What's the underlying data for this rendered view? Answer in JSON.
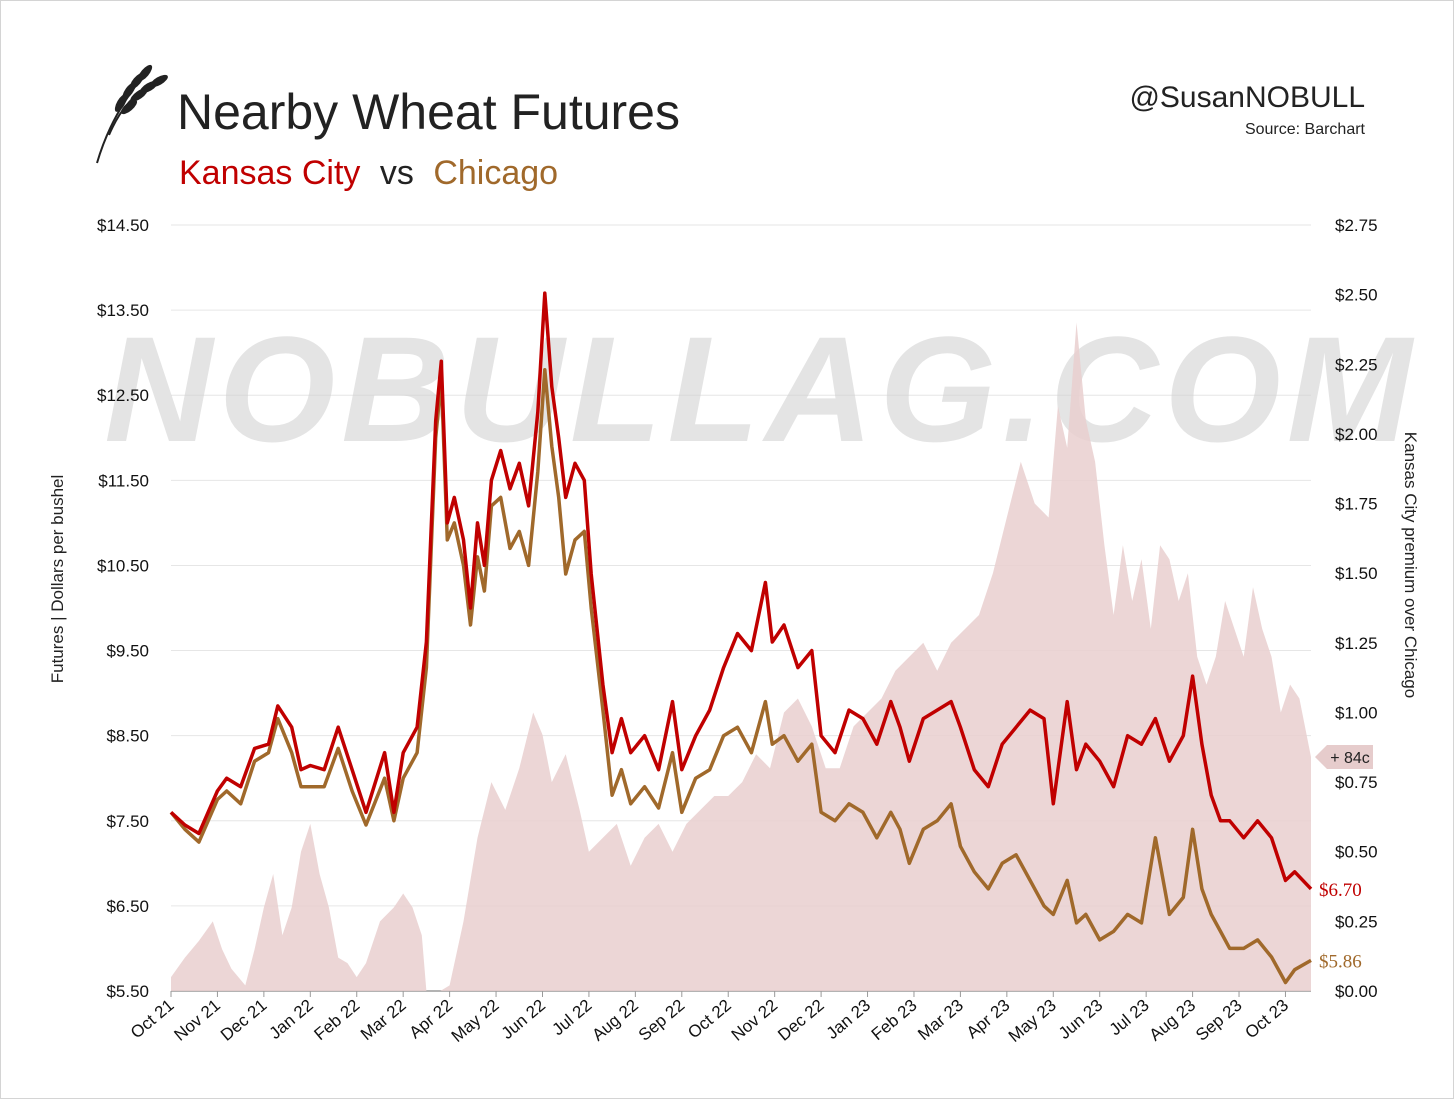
{
  "header": {
    "title": "Nearby Wheat Futures",
    "subtitle_kc": "Kansas City",
    "subtitle_vs": "vs",
    "subtitle_chi": "Chicago",
    "handle": "@SusanNOBULL",
    "source": "Source: Barchart",
    "watermark": "NOBULLAG.COM"
  },
  "colors": {
    "kansas_city": "#c00000",
    "chicago": "#a0692b",
    "premium_area": "#e9cfcf",
    "grid": "#e6e6e6"
  },
  "chart_data": {
    "type": "line",
    "title": "Nearby Wheat Futures",
    "subtitle": "Kansas City vs Chicago",
    "ylabel": "Futures | Dollars per bushel",
    "y2label": "Kansas City premium over Chicago",
    "ylim": [
      5.5,
      14.5
    ],
    "y2lim": [
      0,
      2.75
    ],
    "yticks": [
      "$14.50",
      "$13.50",
      "$12.50",
      "$11.50",
      "$10.50",
      "$9.50",
      "$8.50",
      "$7.50",
      "$6.50",
      "$5.50"
    ],
    "y2ticks": [
      "$2.75",
      "$2.50",
      "$2.25",
      "$2.00",
      "$1.75",
      "$1.50",
      "$1.25",
      "$1.00",
      "$0.75",
      "$0.50",
      "$0.25",
      "$0.00"
    ],
    "x_categories": [
      "Oct 21",
      "Nov 21",
      "Dec 21",
      "Jan 22",
      "Feb 22",
      "Mar 22",
      "Apr 22",
      "May 22",
      "Jun 22",
      "Jul 22",
      "Aug 22",
      "Sep 22",
      "Oct 22",
      "Nov 22",
      "Dec 22",
      "Jan 23",
      "Feb 23",
      "Mar 23",
      "Apr 23",
      "May 23",
      "Jun 23",
      "Jul 23",
      "Aug 23",
      "Sep 23",
      "Oct 23"
    ],
    "x_range": [
      0,
      24.55
    ],
    "grid": true,
    "series": [
      {
        "name": "Kansas City",
        "axis": "left",
        "color": "#c00000",
        "end_label": "$6.70",
        "points": [
          [
            0,
            7.6
          ],
          [
            0.3,
            7.45
          ],
          [
            0.6,
            7.35
          ],
          [
            1.0,
            7.85
          ],
          [
            1.2,
            8.0
          ],
          [
            1.5,
            7.9
          ],
          [
            1.8,
            8.35
          ],
          [
            2.1,
            8.4
          ],
          [
            2.3,
            8.85
          ],
          [
            2.6,
            8.6
          ],
          [
            2.8,
            8.1
          ],
          [
            3.0,
            8.15
          ],
          [
            3.3,
            8.1
          ],
          [
            3.6,
            8.6
          ],
          [
            3.9,
            8.1
          ],
          [
            4.2,
            7.6
          ],
          [
            4.6,
            8.3
          ],
          [
            4.8,
            7.6
          ],
          [
            5.0,
            8.3
          ],
          [
            5.3,
            8.6
          ],
          [
            5.5,
            9.6
          ],
          [
            5.7,
            12.2
          ],
          [
            5.82,
            12.9
          ],
          [
            5.95,
            11.0
          ],
          [
            6.1,
            11.3
          ],
          [
            6.3,
            10.8
          ],
          [
            6.45,
            10.0
          ],
          [
            6.6,
            11.0
          ],
          [
            6.75,
            10.5
          ],
          [
            6.9,
            11.5
          ],
          [
            7.1,
            11.85
          ],
          [
            7.3,
            11.4
          ],
          [
            7.5,
            11.7
          ],
          [
            7.7,
            11.2
          ],
          [
            7.9,
            12.3
          ],
          [
            8.05,
            13.7
          ],
          [
            8.2,
            12.6
          ],
          [
            8.35,
            12.0
          ],
          [
            8.5,
            11.3
          ],
          [
            8.7,
            11.7
          ],
          [
            8.9,
            11.5
          ],
          [
            9.05,
            10.4
          ],
          [
            9.3,
            9.1
          ],
          [
            9.5,
            8.3
          ],
          [
            9.7,
            8.7
          ],
          [
            9.9,
            8.3
          ],
          [
            10.2,
            8.5
          ],
          [
            10.5,
            8.1
          ],
          [
            10.8,
            8.9
          ],
          [
            11.0,
            8.1
          ],
          [
            11.3,
            8.5
          ],
          [
            11.6,
            8.8
          ],
          [
            11.9,
            9.3
          ],
          [
            12.2,
            9.7
          ],
          [
            12.5,
            9.5
          ],
          [
            12.8,
            10.3
          ],
          [
            12.95,
            9.6
          ],
          [
            13.2,
            9.8
          ],
          [
            13.5,
            9.3
          ],
          [
            13.8,
            9.5
          ],
          [
            14.0,
            8.5
          ],
          [
            14.3,
            8.3
          ],
          [
            14.6,
            8.8
          ],
          [
            14.9,
            8.7
          ],
          [
            15.2,
            8.4
          ],
          [
            15.5,
            8.9
          ],
          [
            15.7,
            8.6
          ],
          [
            15.9,
            8.2
          ],
          [
            16.2,
            8.7
          ],
          [
            16.5,
            8.8
          ],
          [
            16.8,
            8.9
          ],
          [
            17.0,
            8.6
          ],
          [
            17.3,
            8.1
          ],
          [
            17.6,
            7.9
          ],
          [
            17.9,
            8.4
          ],
          [
            18.2,
            8.6
          ],
          [
            18.5,
            8.8
          ],
          [
            18.8,
            8.7
          ],
          [
            19.0,
            7.7
          ],
          [
            19.3,
            8.9
          ],
          [
            19.5,
            8.1
          ],
          [
            19.7,
            8.4
          ],
          [
            20.0,
            8.2
          ],
          [
            20.3,
            7.9
          ],
          [
            20.6,
            8.5
          ],
          [
            20.9,
            8.4
          ],
          [
            21.2,
            8.7
          ],
          [
            21.5,
            8.2
          ],
          [
            21.8,
            8.5
          ],
          [
            22.0,
            9.2
          ],
          [
            22.2,
            8.4
          ],
          [
            22.4,
            7.8
          ],
          [
            22.6,
            7.5
          ],
          [
            22.8,
            7.5
          ],
          [
            23.1,
            7.3
          ],
          [
            23.4,
            7.5
          ],
          [
            23.7,
            7.3
          ],
          [
            24.0,
            6.8
          ],
          [
            24.2,
            6.9
          ],
          [
            24.55,
            6.7
          ]
        ]
      },
      {
        "name": "Chicago",
        "axis": "left",
        "color": "#a0692b",
        "end_label": "$5.86",
        "points": [
          [
            0,
            7.6
          ],
          [
            0.3,
            7.4
          ],
          [
            0.6,
            7.25
          ],
          [
            1.0,
            7.75
          ],
          [
            1.2,
            7.85
          ],
          [
            1.5,
            7.7
          ],
          [
            1.8,
            8.2
          ],
          [
            2.1,
            8.3
          ],
          [
            2.3,
            8.7
          ],
          [
            2.6,
            8.3
          ],
          [
            2.8,
            7.9
          ],
          [
            3.0,
            7.9
          ],
          [
            3.3,
            7.9
          ],
          [
            3.6,
            8.35
          ],
          [
            3.9,
            7.85
          ],
          [
            4.2,
            7.45
          ],
          [
            4.6,
            8.0
          ],
          [
            4.8,
            7.5
          ],
          [
            5.0,
            8.0
          ],
          [
            5.3,
            8.3
          ],
          [
            5.5,
            9.3
          ],
          [
            5.7,
            12.0
          ],
          [
            5.82,
            12.7
          ],
          [
            5.95,
            10.8
          ],
          [
            6.1,
            11.0
          ],
          [
            6.3,
            10.5
          ],
          [
            6.45,
            9.8
          ],
          [
            6.6,
            10.6
          ],
          [
            6.75,
            10.2
          ],
          [
            6.9,
            11.2
          ],
          [
            7.1,
            11.3
          ],
          [
            7.3,
            10.7
          ],
          [
            7.5,
            10.9
          ],
          [
            7.7,
            10.5
          ],
          [
            7.9,
            11.6
          ],
          [
            8.05,
            12.8
          ],
          [
            8.2,
            11.9
          ],
          [
            8.35,
            11.3
          ],
          [
            8.5,
            10.4
          ],
          [
            8.7,
            10.8
          ],
          [
            8.9,
            10.9
          ],
          [
            9.05,
            10.0
          ],
          [
            9.3,
            8.8
          ],
          [
            9.5,
            7.8
          ],
          [
            9.7,
            8.1
          ],
          [
            9.9,
            7.7
          ],
          [
            10.2,
            7.9
          ],
          [
            10.5,
            7.65
          ],
          [
            10.8,
            8.3
          ],
          [
            11.0,
            7.6
          ],
          [
            11.3,
            8.0
          ],
          [
            11.6,
            8.1
          ],
          [
            11.9,
            8.5
          ],
          [
            12.2,
            8.6
          ],
          [
            12.5,
            8.3
          ],
          [
            12.8,
            8.9
          ],
          [
            12.95,
            8.4
          ],
          [
            13.2,
            8.5
          ],
          [
            13.5,
            8.2
          ],
          [
            13.8,
            8.4
          ],
          [
            14.0,
            7.6
          ],
          [
            14.3,
            7.5
          ],
          [
            14.6,
            7.7
          ],
          [
            14.9,
            7.6
          ],
          [
            15.2,
            7.3
          ],
          [
            15.5,
            7.6
          ],
          [
            15.7,
            7.4
          ],
          [
            15.9,
            7.0
          ],
          [
            16.2,
            7.4
          ],
          [
            16.5,
            7.5
          ],
          [
            16.8,
            7.7
          ],
          [
            17.0,
            7.2
          ],
          [
            17.3,
            6.9
          ],
          [
            17.6,
            6.7
          ],
          [
            17.9,
            7.0
          ],
          [
            18.2,
            7.1
          ],
          [
            18.5,
            6.8
          ],
          [
            18.8,
            6.5
          ],
          [
            19.0,
            6.4
          ],
          [
            19.3,
            6.8
          ],
          [
            19.5,
            6.3
          ],
          [
            19.7,
            6.4
          ],
          [
            20.0,
            6.1
          ],
          [
            20.3,
            6.2
          ],
          [
            20.6,
            6.4
          ],
          [
            20.9,
            6.3
          ],
          [
            21.2,
            7.3
          ],
          [
            21.5,
            6.4
          ],
          [
            21.8,
            6.6
          ],
          [
            22.0,
            7.4
          ],
          [
            22.2,
            6.7
          ],
          [
            22.4,
            6.4
          ],
          [
            22.6,
            6.2
          ],
          [
            22.8,
            6.0
          ],
          [
            23.1,
            6.0
          ],
          [
            23.4,
            6.1
          ],
          [
            23.7,
            5.9
          ],
          [
            24.0,
            5.6
          ],
          [
            24.2,
            5.75
          ],
          [
            24.55,
            5.86
          ]
        ]
      },
      {
        "name": "Kansas City premium over Chicago",
        "axis": "right",
        "type": "area",
        "color": "#e9cfcf",
        "end_label": "+ 84c",
        "points": [
          [
            0,
            0.05
          ],
          [
            0.3,
            0.12
          ],
          [
            0.6,
            0.18
          ],
          [
            0.9,
            0.25
          ],
          [
            1.1,
            0.15
          ],
          [
            1.3,
            0.08
          ],
          [
            1.6,
            0.02
          ],
          [
            1.8,
            0.15
          ],
          [
            2.0,
            0.3
          ],
          [
            2.2,
            0.42
          ],
          [
            2.4,
            0.2
          ],
          [
            2.6,
            0.3
          ],
          [
            2.8,
            0.5
          ],
          [
            3.0,
            0.6
          ],
          [
            3.2,
            0.42
          ],
          [
            3.4,
            0.3
          ],
          [
            3.6,
            0.12
          ],
          [
            3.8,
            0.1
          ],
          [
            4.0,
            0.05
          ],
          [
            4.2,
            0.1
          ],
          [
            4.5,
            0.25
          ],
          [
            4.8,
            0.3
          ],
          [
            5.0,
            0.35
          ],
          [
            5.2,
            0.3
          ],
          [
            5.4,
            0.2
          ],
          [
            5.5,
            0.0
          ],
          [
            5.8,
            0.0
          ],
          [
            6.0,
            0.02
          ],
          [
            6.3,
            0.25
          ],
          [
            6.6,
            0.55
          ],
          [
            6.9,
            0.75
          ],
          [
            7.2,
            0.65
          ],
          [
            7.5,
            0.8
          ],
          [
            7.8,
            1.0
          ],
          [
            8.0,
            0.92
          ],
          [
            8.2,
            0.75
          ],
          [
            8.5,
            0.85
          ],
          [
            8.8,
            0.65
          ],
          [
            9.0,
            0.5
          ],
          [
            9.3,
            0.55
          ],
          [
            9.6,
            0.6
          ],
          [
            9.9,
            0.45
          ],
          [
            10.2,
            0.55
          ],
          [
            10.5,
            0.6
          ],
          [
            10.8,
            0.5
          ],
          [
            11.1,
            0.6
          ],
          [
            11.4,
            0.65
          ],
          [
            11.7,
            0.7
          ],
          [
            12.0,
            0.7
          ],
          [
            12.3,
            0.75
          ],
          [
            12.6,
            0.85
          ],
          [
            12.9,
            0.8
          ],
          [
            13.2,
            1.0
          ],
          [
            13.5,
            1.05
          ],
          [
            13.8,
            0.95
          ],
          [
            14.1,
            0.8
          ],
          [
            14.4,
            0.8
          ],
          [
            14.7,
            0.95
          ],
          [
            15.0,
            1.0
          ],
          [
            15.3,
            1.05
          ],
          [
            15.6,
            1.15
          ],
          [
            15.9,
            1.2
          ],
          [
            16.2,
            1.25
          ],
          [
            16.5,
            1.15
          ],
          [
            16.8,
            1.25
          ],
          [
            17.1,
            1.3
          ],
          [
            17.4,
            1.35
          ],
          [
            17.7,
            1.5
          ],
          [
            18.0,
            1.7
          ],
          [
            18.3,
            1.9
          ],
          [
            18.6,
            1.75
          ],
          [
            18.9,
            1.7
          ],
          [
            19.1,
            2.1
          ],
          [
            19.3,
            1.95
          ],
          [
            19.5,
            2.4
          ],
          [
            19.7,
            2.05
          ],
          [
            19.9,
            1.9
          ],
          [
            20.1,
            1.6
          ],
          [
            20.3,
            1.35
          ],
          [
            20.5,
            1.6
          ],
          [
            20.7,
            1.4
          ],
          [
            20.9,
            1.55
          ],
          [
            21.1,
            1.3
          ],
          [
            21.3,
            1.6
          ],
          [
            21.5,
            1.55
          ],
          [
            21.7,
            1.4
          ],
          [
            21.9,
            1.5
          ],
          [
            22.1,
            1.2
          ],
          [
            22.3,
            1.1
          ],
          [
            22.5,
            1.2
          ],
          [
            22.7,
            1.4
          ],
          [
            22.9,
            1.3
          ],
          [
            23.1,
            1.2
          ],
          [
            23.3,
            1.45
          ],
          [
            23.5,
            1.3
          ],
          [
            23.7,
            1.2
          ],
          [
            23.9,
            1.0
          ],
          [
            24.1,
            1.1
          ],
          [
            24.3,
            1.05
          ],
          [
            24.55,
            0.84
          ]
        ]
      }
    ]
  }
}
